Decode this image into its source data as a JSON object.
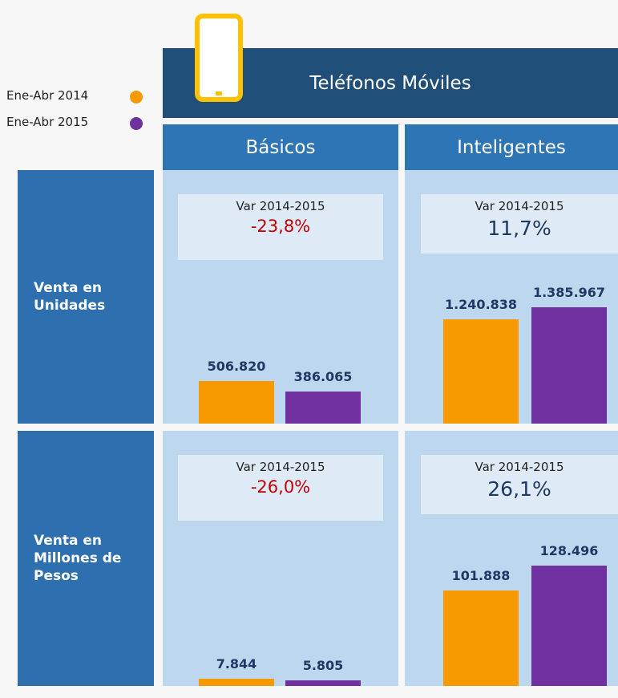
{
  "header": {
    "title": "Teléfonos Móviles"
  },
  "legend": [
    {
      "name": "Ene-Abr 2014",
      "color": "#f79a00"
    },
    {
      "name": "Ene-Abr 2015",
      "color": "#7030a0"
    }
  ],
  "columns": [
    "Básicos",
    "Inteligentes"
  ],
  "rows": [
    "Venta en Unidades",
    "Venta en Millones de Pesos"
  ],
  "chart_data": [
    {
      "type": "bar",
      "annotation": "Var 2014-2015",
      "variation": "-23,8%",
      "variation_color": "#c00000",
      "values": [
        506820,
        386065
      ],
      "value_labels": [
        "506.820",
        "386.065"
      ]
    },
    {
      "type": "bar",
      "annotation": "Var 2014-2015",
      "variation": "11,7%",
      "variation_color": "#1f3864",
      "values": [
        1240838,
        1385967
      ],
      "value_labels": [
        "1.240.838",
        "1.385.967"
      ]
    },
    {
      "type": "bar",
      "annotation": "Var 2014-2015",
      "variation": "-26,0%",
      "variation_color": "#c00000",
      "values": [
        7844,
        5805
      ],
      "value_labels": [
        "7.844",
        "5.805"
      ]
    },
    {
      "type": "bar",
      "annotation": "Var 2014-2015",
      "variation": "26,1%",
      "variation_color": "#1f3864",
      "values": [
        101888,
        128496
      ],
      "value_labels": [
        "101.888",
        "128.496"
      ]
    }
  ]
}
